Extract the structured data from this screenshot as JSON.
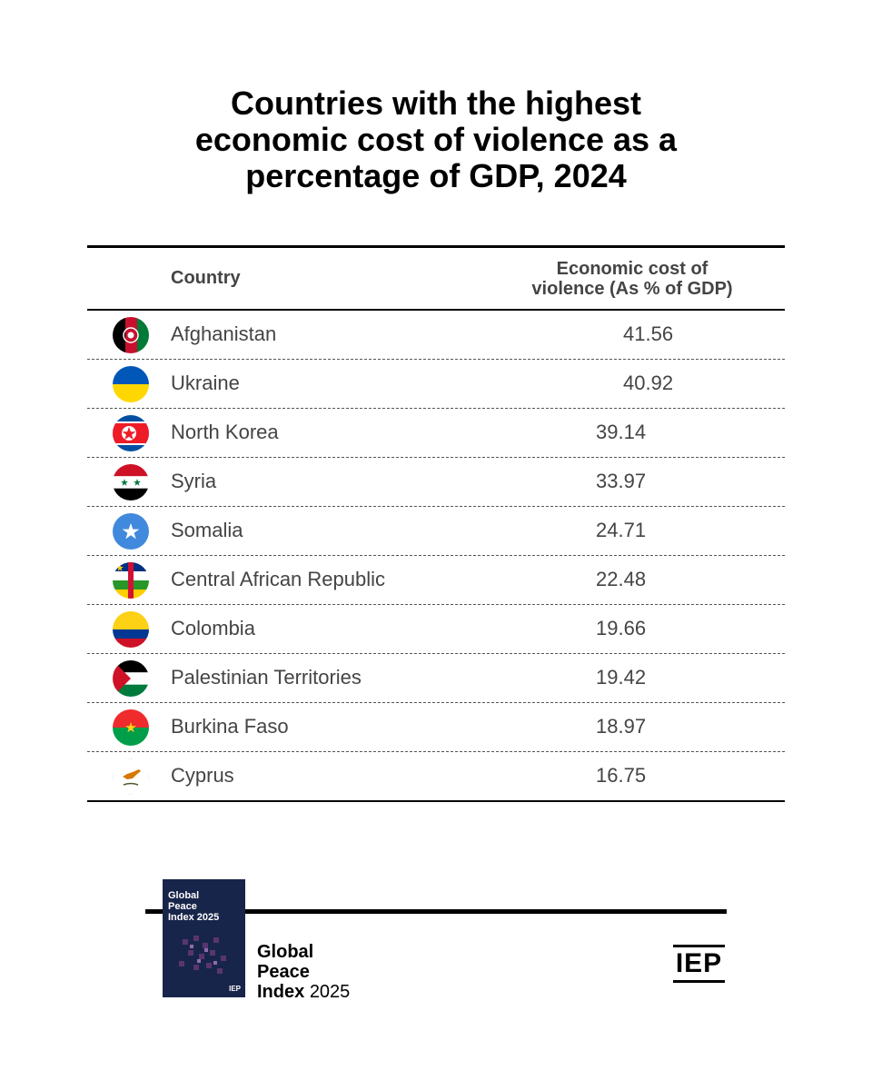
{
  "chart_data": {
    "type": "table",
    "title": [
      "Countries with the highest",
      "economic cost of violence as a",
      "percentage of GDP, 2024"
    ],
    "columns": [
      "Country",
      "Economic cost of violence (As % of GDP)"
    ],
    "column_header_lines": [
      "Economic cost of",
      "violence (As % of GDP)"
    ],
    "rows": [
      {
        "country": "Afghanistan",
        "value": "41.56",
        "flag_icon": "afghanistan-flag-icon"
      },
      {
        "country": "Ukraine",
        "value": "40.92",
        "flag_icon": "ukraine-flag-icon"
      },
      {
        "country": "North Korea",
        "value": "39.14",
        "flag_icon": "north-korea-flag-icon"
      },
      {
        "country": "Syria",
        "value": "33.97",
        "flag_icon": "syria-flag-icon"
      },
      {
        "country": "Somalia",
        "value": "24.71",
        "flag_icon": "somalia-flag-icon"
      },
      {
        "country": "Central African Republic",
        "value": "22.48",
        "flag_icon": "central-african-republic-flag-icon"
      },
      {
        "country": "Colombia",
        "value": "19.66",
        "flag_icon": "colombia-flag-icon"
      },
      {
        "country": "Palestinian Territories",
        "value": "19.42",
        "flag_icon": "palestine-flag-icon"
      },
      {
        "country": "Burkina Faso",
        "value": "18.97",
        "flag_icon": "burkina-faso-flag-icon"
      },
      {
        "country": "Cyprus",
        "value": "16.75",
        "flag_icon": "cyprus-flag-icon"
      }
    ]
  },
  "footer": {
    "report_name_lines": [
      "Global",
      "Peace",
      "Index"
    ],
    "report_year": "2025",
    "cover_title_lines": [
      "Global",
      "Peace",
      "Index 2025"
    ],
    "logo_text": "IEP"
  },
  "colors": {
    "text": "#000000",
    "table_text": "#444444",
    "cover_background": "#1a2a4a"
  }
}
